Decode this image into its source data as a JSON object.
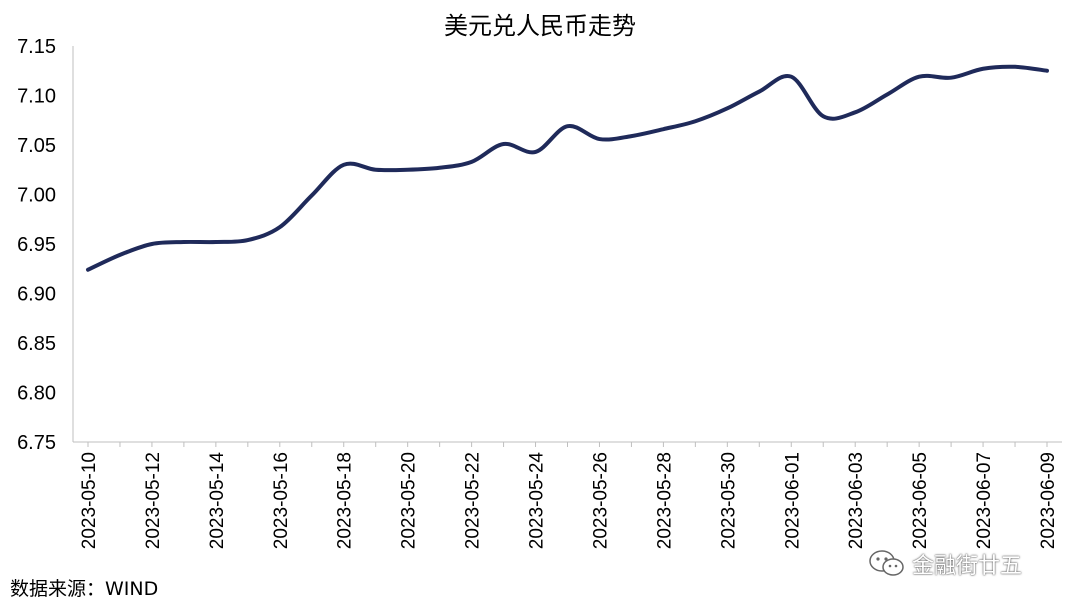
{
  "chart_data": {
    "type": "line",
    "title": "美元兑人民币走势",
    "xlabel": "",
    "ylabel": "",
    "ylim": [
      6.75,
      7.15
    ],
    "yticks": [
      "6.75",
      "6.80",
      "6.85",
      "6.90",
      "6.95",
      "7.00",
      "7.05",
      "7.10",
      "7.15"
    ],
    "x_tick_labels": [
      "2023-05-10",
      "2023-05-12",
      "2023-05-14",
      "2023-05-16",
      "2023-05-18",
      "2023-05-20",
      "2023-05-22",
      "2023-05-24",
      "2023-05-26",
      "2023-05-28",
      "2023-05-30",
      "2023-06-01",
      "2023-06-03",
      "2023-06-05",
      "2023-06-07",
      "2023-06-09"
    ],
    "grid": false,
    "legend": "none",
    "line_color": "#1f2a5a",
    "series": [
      {
        "x": [
          "2023-05-10",
          "2023-05-11",
          "2023-05-12",
          "2023-05-13",
          "2023-05-14",
          "2023-05-15",
          "2023-05-16",
          "2023-05-17",
          "2023-05-18",
          "2023-05-19",
          "2023-05-20",
          "2023-05-21",
          "2023-05-22",
          "2023-05-23",
          "2023-05-24",
          "2023-05-25",
          "2023-05-26",
          "2023-05-27",
          "2023-05-28",
          "2023-05-29",
          "2023-05-30",
          "2023-05-31",
          "2023-06-01",
          "2023-06-02",
          "2023-06-03",
          "2023-06-04",
          "2023-06-05",
          "2023-06-06",
          "2023-06-07",
          "2023-06-08",
          "2023-06-09"
        ],
        "values": [
          6.924,
          6.939,
          6.95,
          6.952,
          6.952,
          6.954,
          6.967,
          6.999,
          7.03,
          7.025,
          7.025,
          7.027,
          7.033,
          7.051,
          7.043,
          7.069,
          7.056,
          7.059,
          7.066,
          7.074,
          7.087,
          7.104,
          7.119,
          7.079,
          7.083,
          7.101,
          7.119,
          7.118,
          7.127,
          7.129,
          7.125
        ]
      }
    ]
  },
  "source": "数据来源：WIND",
  "watermark": "金融街廿五",
  "watermark_icon": "wechat-icon"
}
